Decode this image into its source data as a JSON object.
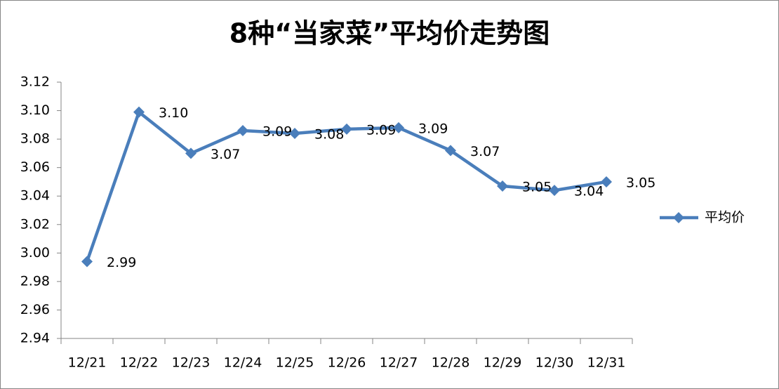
{
  "chart_data": {
    "type": "line",
    "title": "8种“当家菜”平均价走势图",
    "categories": [
      "12/21",
      "12/22",
      "12/23",
      "12/24",
      "12/25",
      "12/26",
      "12/27",
      "12/28",
      "12/29",
      "12/30",
      "12/31"
    ],
    "series": [
      {
        "name": "平均价",
        "color": "#4a7ebb",
        "values": [
          2.994,
          3.099,
          3.07,
          3.086,
          3.084,
          3.087,
          3.088,
          3.072,
          3.047,
          3.044,
          3.05
        ],
        "value_labels": [
          "2.99",
          "3.10",
          "3.07",
          "3.09",
          "3.08",
          "3.09",
          "3.09",
          "3.07",
          "3.05",
          "3.04",
          "3.05"
        ]
      }
    ],
    "ylim": [
      2.94,
      3.12
    ],
    "yticks": [
      {
        "value": 2.94,
        "label": "2.94"
      },
      {
        "value": 2.96,
        "label": "2.96"
      },
      {
        "value": 2.98,
        "label": "2.98"
      },
      {
        "value": 3.0,
        "label": "3.00"
      },
      {
        "value": 3.02,
        "label": "3.02"
      },
      {
        "value": 3.04,
        "label": "3.04"
      },
      {
        "value": 3.06,
        "label": "3.06"
      },
      {
        "value": 3.08,
        "label": "3.08"
      },
      {
        "value": 3.1,
        "label": "3.10"
      },
      {
        "value": 3.12,
        "label": "3.12"
      }
    ],
    "legend": "right",
    "grid": false
  }
}
